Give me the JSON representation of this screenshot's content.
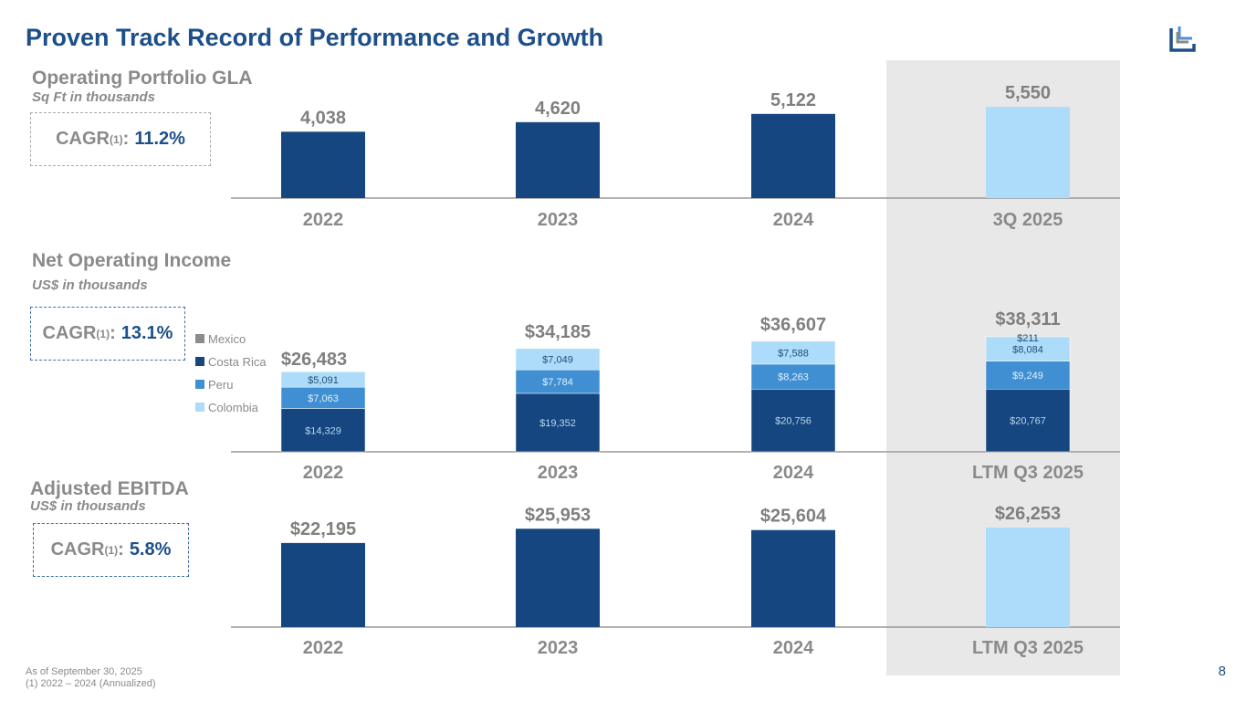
{
  "title": "Proven Track Record of Performance and Growth",
  "footnote": {
    "line1": "As of September 30, 2025",
    "line2": "(1) 2022 – 2024 (Annualized)"
  },
  "page_number": "8",
  "colors": {
    "dark": "#15467f",
    "mid": "#3f8fd2",
    "light": "#acdcf9",
    "mexico": "#8c8c8c",
    "highlight_bg": "#e8e8e8"
  },
  "sections": [
    {
      "title": "Operating Portfolio GLA",
      "subtitle": "Sq Ft in thousands",
      "cagr_label": "CAGR",
      "cagr_sup": "(1)",
      "cagr_value": "11.2%"
    },
    {
      "title": "Net Operating Income",
      "subtitle": "US$ in thousands",
      "cagr_label": "CAGR",
      "cagr_sup": "(1)",
      "cagr_value": "13.1%"
    },
    {
      "title": "Adjusted EBITDA",
      "subtitle": "US$ in thousands",
      "cagr_label": "CAGR",
      "cagr_sup": "(1)",
      "cagr_value": "5.8%"
    }
  ],
  "chart_data": [
    {
      "type": "bar",
      "categories": [
        "2022",
        "2023",
        "2024",
        "3Q 2025"
      ],
      "values": [
        4038,
        4620,
        5122,
        5550
      ],
      "labels": [
        "4,038",
        "4,620",
        "5,122",
        "5,550"
      ],
      "highlight_last": true
    },
    {
      "type": "bar",
      "stacked": true,
      "categories": [
        "2022",
        "2023",
        "2024",
        "LTM Q3 2025"
      ],
      "legend": [
        "Mexico",
        "Costa Rica",
        "Peru",
        "Colombia"
      ],
      "series": [
        {
          "name": "Costa Rica",
          "values": [
            14329,
            19352,
            20756,
            20767
          ],
          "labels": [
            "$14,329",
            "$19,352",
            "$20,756",
            "$20,767"
          ]
        },
        {
          "name": "Peru",
          "values": [
            7063,
            7784,
            8263,
            9249
          ],
          "labels": [
            "$7,063",
            "$7,784",
            "$8,263",
            "$9,249"
          ]
        },
        {
          "name": "Colombia",
          "values": [
            5091,
            7049,
            7588,
            8084
          ],
          "labels": [
            "$5,091",
            "$7,049",
            "$7,588",
            "$8,084"
          ]
        },
        {
          "name": "Mexico",
          "values": [
            0,
            0,
            0,
            211
          ],
          "labels": [
            "",
            "",
            "",
            "$211"
          ]
        }
      ],
      "totals": [
        "$26,483",
        "$34,185",
        "$36,607",
        "$38,311"
      ]
    },
    {
      "type": "bar",
      "categories": [
        "2022",
        "2023",
        "2024",
        "LTM Q3 2025"
      ],
      "values": [
        22195,
        25953,
        25604,
        26253
      ],
      "labels": [
        "$22,195",
        "$25,953",
        "$25,604",
        "$26,253"
      ],
      "highlight_last": true
    }
  ]
}
